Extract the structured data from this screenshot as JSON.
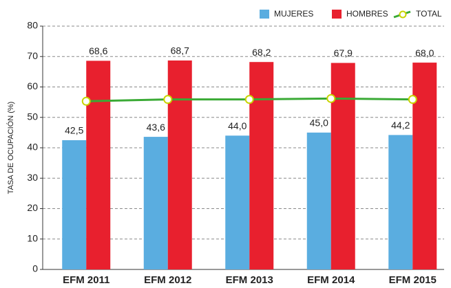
{
  "chart_data": {
    "type": "bar",
    "y_label": "TASA DE OCUPACIÓN (%)",
    "categories": [
      "EFM 2011",
      "EFM 2012",
      "EFM 2013",
      "EFM 2014",
      "EFM 2015"
    ],
    "series": [
      {
        "name": "MUJERES",
        "type": "bar",
        "color": "#5aade0",
        "values": [
          42.5,
          43.6,
          44.0,
          45.0,
          44.2
        ],
        "value_labels": [
          "42,5",
          "43,6",
          "44,0",
          "45,0",
          "44,2"
        ]
      },
      {
        "name": "HOMBRES",
        "type": "bar",
        "color": "#e8202e",
        "values": [
          68.6,
          68.7,
          68.2,
          67.9,
          68.0
        ],
        "value_labels": [
          "68,6",
          "68,7",
          "68,2",
          "67,9",
          "68,0"
        ]
      },
      {
        "name": "TOTAL",
        "type": "line",
        "color": "#3aaa35",
        "marker_color": "#c8d400",
        "values": [
          55.3,
          55.9,
          55.9,
          56.2,
          55.9
        ]
      }
    ],
    "ylim": [
      0,
      80
    ],
    "yticks": [
      0,
      10,
      20,
      30,
      40,
      50,
      60,
      70,
      80
    ],
    "grid": true,
    "legend": "top-right"
  }
}
